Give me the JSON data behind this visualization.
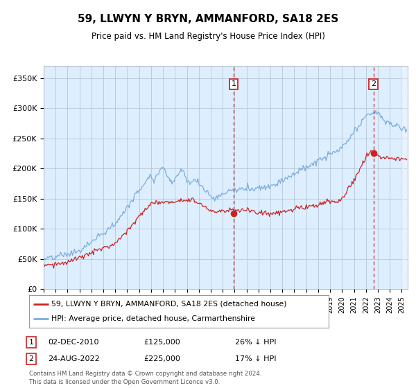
{
  "title": "59, LLWYN Y BRYN, AMMANFORD, SA18 2ES",
  "subtitle": "Price paid vs. HM Land Registry's House Price Index (HPI)",
  "ylabel_ticks": [
    "£0",
    "£50K",
    "£100K",
    "£150K",
    "£200K",
    "£250K",
    "£300K",
    "£350K"
  ],
  "ytick_values": [
    0,
    50000,
    100000,
    150000,
    200000,
    250000,
    300000,
    350000
  ],
  "ylim": [
    0,
    370000
  ],
  "xlim_start": 1995.0,
  "xlim_end": 2025.5,
  "hpi_color": "#7aaddc",
  "price_color": "#cc2222",
  "background_color": "#ddeeff",
  "grid_color": "#b0bfd0",
  "marker1_date_x": 2010.92,
  "marker1_y": 125000,
  "marker2_date_x": 2022.64,
  "marker2_y": 225000,
  "legend_label1": "59, LLWYN Y BRYN, AMMANFORD, SA18 2ES (detached house)",
  "legend_label2": "HPI: Average price, detached house, Carmarthenshire",
  "note1_num": "1",
  "note1_date": "02-DEC-2010",
  "note1_price": "£125,000",
  "note1_pct": "26% ↓ HPI",
  "note2_num": "2",
  "note2_date": "24-AUG-2022",
  "note2_price": "£225,000",
  "note2_pct": "17% ↓ HPI",
  "footer": "Contains HM Land Registry data © Crown copyright and database right 2024.\nThis data is licensed under the Open Government Licence v3.0."
}
